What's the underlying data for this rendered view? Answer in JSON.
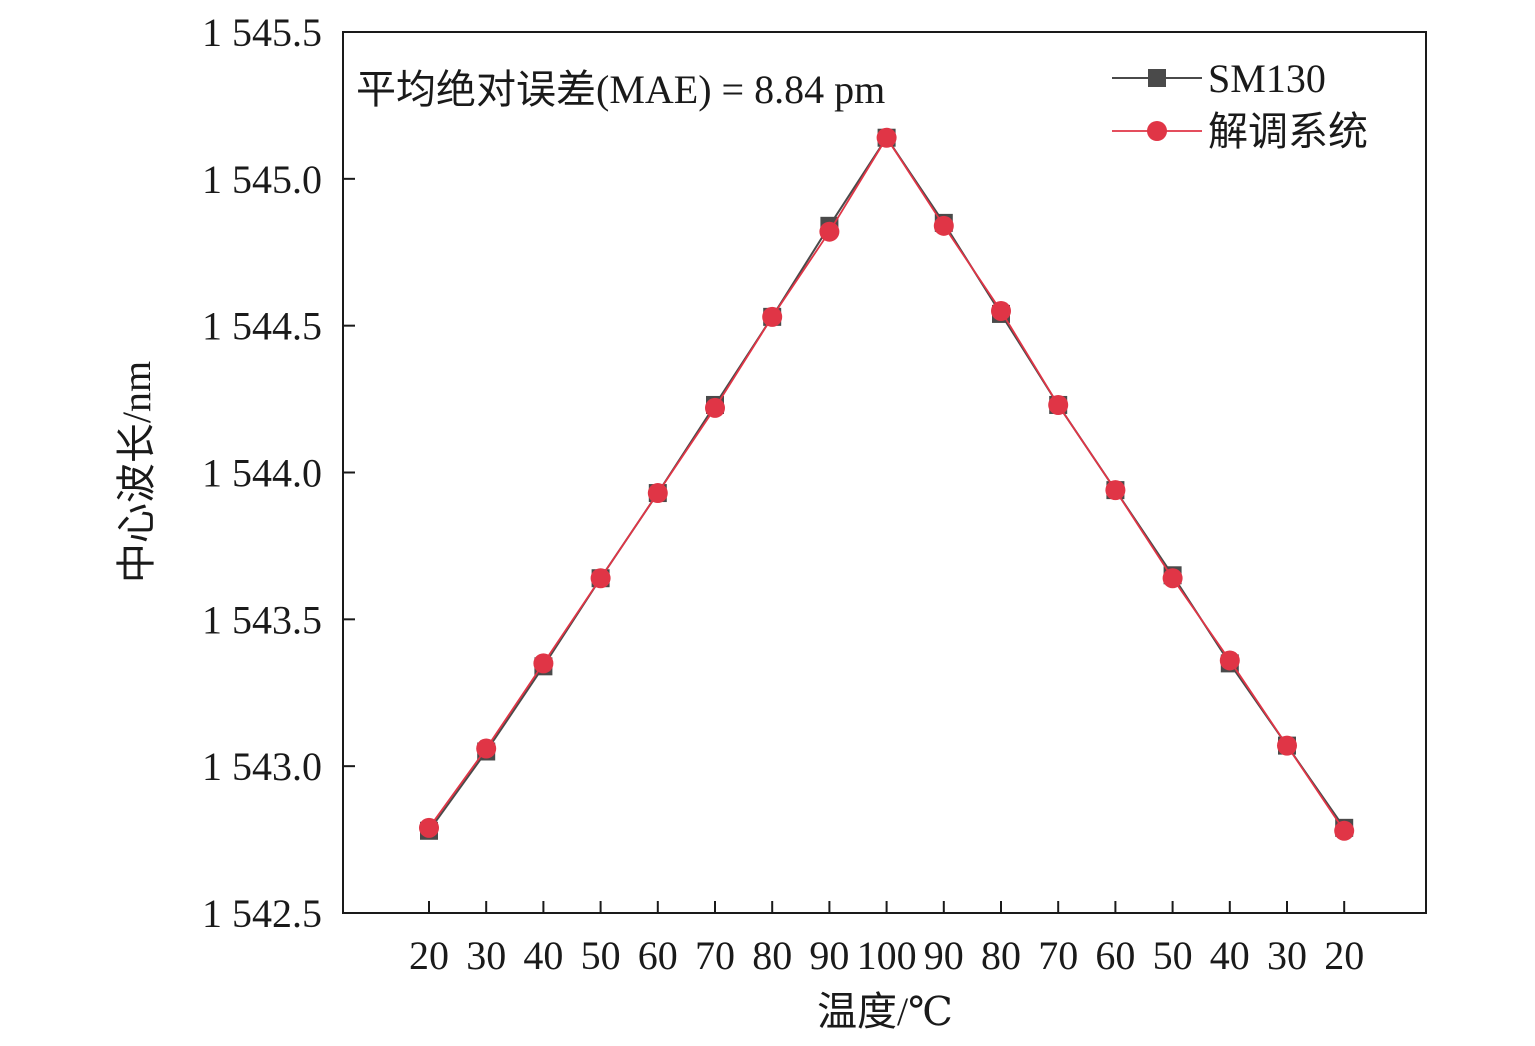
{
  "chart_data": {
    "type": "line",
    "annotation": "平均绝对误差(MAE) = 8.84 pm",
    "xlabel": "温度/℃",
    "ylabel": "中心波长/nm",
    "categories": [
      "20",
      "30",
      "40",
      "50",
      "60",
      "70",
      "80",
      "90",
      "100",
      "90",
      "80",
      "70",
      "60",
      "50",
      "40",
      "30",
      "20"
    ],
    "ylim": [
      1542.5,
      1545.5
    ],
    "yticks": [
      1542.5,
      1543.0,
      1543.5,
      1544.0,
      1544.5,
      1545.0,
      1545.5
    ],
    "ytick_labels": [
      "1 542.5",
      "1 543.0",
      "1 543.5",
      "1 544.0",
      "1 544.5",
      "1 545.0",
      "1 545.5"
    ],
    "grid": false,
    "legend_position": "top-right",
    "series": [
      {
        "name": "SM130",
        "marker": "square",
        "color": "#4a4a4a",
        "values": [
          1542.78,
          1543.05,
          1543.34,
          1543.64,
          1543.93,
          1544.23,
          1544.53,
          1544.84,
          1545.14,
          1544.85,
          1544.54,
          1544.23,
          1543.94,
          1543.65,
          1543.35,
          1543.07,
          1542.79
        ]
      },
      {
        "name": "解调系统",
        "marker": "circle",
        "color": "#e03546",
        "values": [
          1542.79,
          1543.06,
          1543.35,
          1543.64,
          1543.93,
          1544.22,
          1544.53,
          1544.82,
          1545.14,
          1544.84,
          1544.55,
          1544.23,
          1543.94,
          1543.64,
          1543.36,
          1543.07,
          1542.78
        ]
      }
    ]
  }
}
